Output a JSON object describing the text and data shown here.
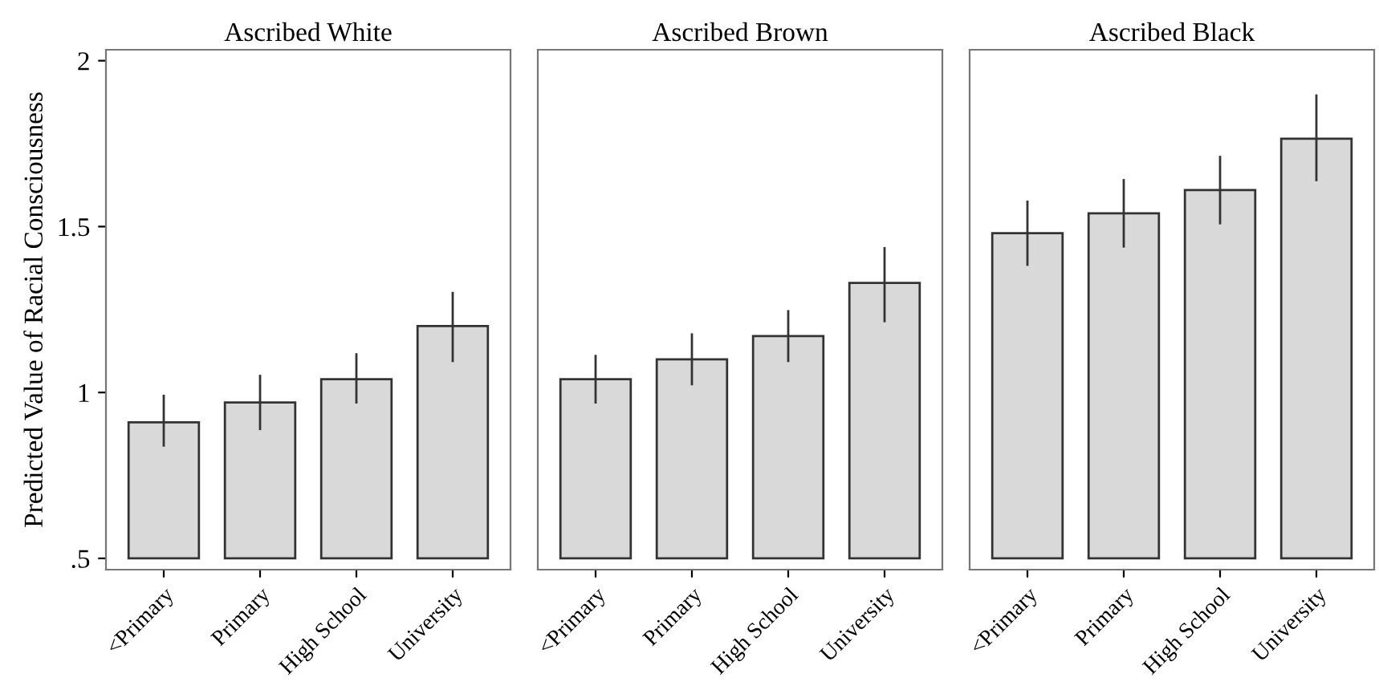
{
  "chart_data": [
    {
      "type": "bar",
      "title": "Ascribed White",
      "ylabel": "Predicted Value of Racial Consciousness",
      "categories": [
        "<Primary",
        "Primary",
        "High School",
        "University"
      ],
      "base": [
        0.5,
        0.5,
        0.5,
        0.5
      ],
      "values": [
        0.41,
        0.47,
        0.54,
        0.7
      ],
      "errors": [
        [
          0.84,
          0.99
        ],
        [
          0.89,
          1.05
        ],
        [
          0.97,
          1.115
        ],
        [
          1.095,
          1.3
        ]
      ],
      "color": "#d9d9d9",
      "ylim": [
        0.466,
        2.033
      ],
      "yticks": [
        {
          "value": 0.5,
          "label": ".5"
        },
        1,
        1.5,
        2
      ],
      "grid": false
    },
    {
      "type": "bar",
      "title": "Ascribed Brown",
      "categories": [
        "<Primary",
        "Primary",
        "High School",
        "University"
      ],
      "base": [
        0.5,
        0.5,
        0.5,
        0.5
      ],
      "values": [
        0.54,
        0.6,
        0.67,
        0.83
      ],
      "errors": [
        [
          0.97,
          1.11
        ],
        [
          1.025,
          1.175
        ],
        [
          1.095,
          1.245
        ],
        [
          1.215,
          1.435
        ]
      ],
      "color": "#d9d9d9",
      "ylim": [
        0.466,
        2.033
      ],
      "tick_labels": "x",
      "grid": false
    },
    {
      "type": "bar",
      "title": "Ascribed Black",
      "categories": [
        "<Primary",
        "Primary",
        "High School",
        "University"
      ],
      "base": [
        0.5,
        0.5,
        0.5,
        0.5
      ],
      "values": [
        0.98,
        1.04,
        1.11,
        1.265
      ],
      "errors": [
        [
          1.385,
          1.575
        ],
        [
          1.44,
          1.64
        ],
        [
          1.51,
          1.71
        ],
        [
          1.64,
          1.895
        ]
      ],
      "color": "#d9d9d9",
      "ylim": [
        0.466,
        2.033
      ],
      "tick_labels": "x",
      "grid": false
    }
  ]
}
